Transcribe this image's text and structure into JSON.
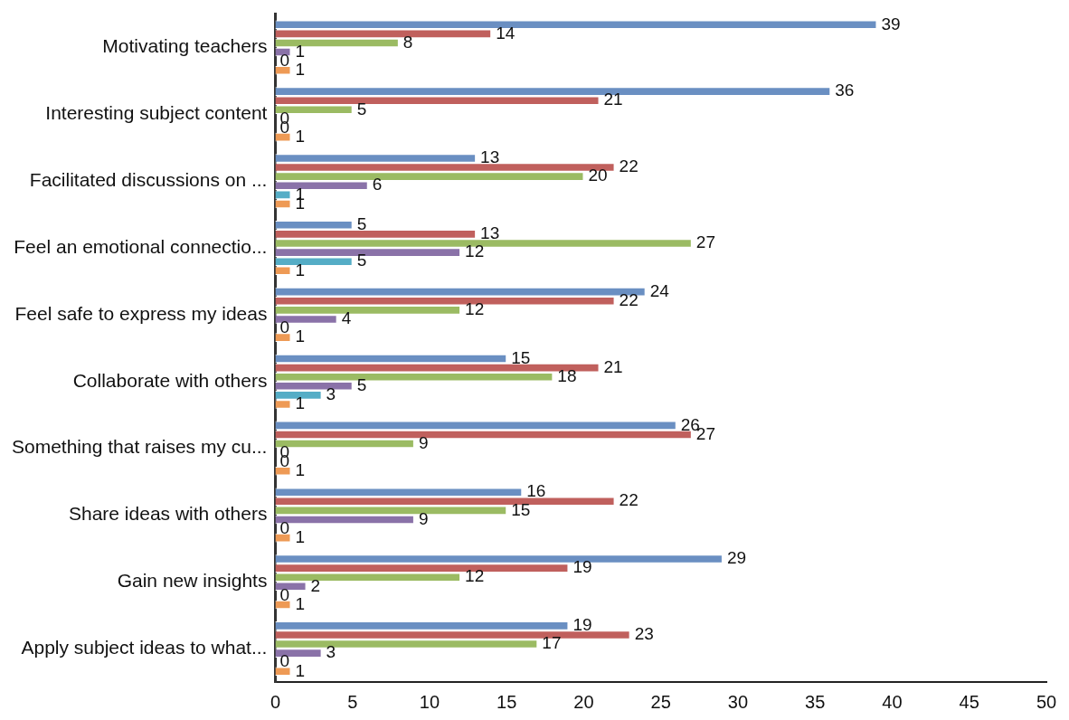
{
  "chart_data": {
    "type": "bar",
    "orientation": "horizontal",
    "categories": [
      "Motivating teachers",
      "Interesting subject content",
      "Facilitated discussions on ...",
      "Feel an emotional connectio...",
      "Feel safe to express my ideas",
      "Collaborate with others",
      "Something that raises my cu...",
      "Share ideas with others",
      "Gain new insights",
      "Apply subject ideas to what..."
    ],
    "series": [
      {
        "color": "#6a8fc2",
        "values": [
          39,
          36,
          13,
          5,
          24,
          15,
          26,
          16,
          29,
          19
        ]
      },
      {
        "color": "#c0605d",
        "values": [
          14,
          21,
          22,
          13,
          22,
          21,
          27,
          22,
          19,
          23
        ]
      },
      {
        "color": "#9bbb63",
        "values": [
          8,
          5,
          20,
          27,
          12,
          18,
          9,
          15,
          12,
          17
        ]
      },
      {
        "color": "#8a72a8",
        "values": [
          1,
          0,
          6,
          12,
          4,
          5,
          0,
          9,
          2,
          3
        ]
      },
      {
        "color": "#55adc6",
        "values": [
          0,
          0,
          1,
          5,
          0,
          3,
          0,
          0,
          0,
          0
        ]
      },
      {
        "color": "#ee9a55",
        "values": [
          1,
          1,
          1,
          1,
          1,
          1,
          1,
          1,
          1,
          1
        ]
      }
    ],
    "xlim": [
      0,
      50
    ],
    "xticks": [
      0,
      5,
      10,
      15,
      20,
      25,
      30,
      35,
      40,
      45,
      50
    ],
    "grid": false,
    "legend": false,
    "data_labels": true
  }
}
